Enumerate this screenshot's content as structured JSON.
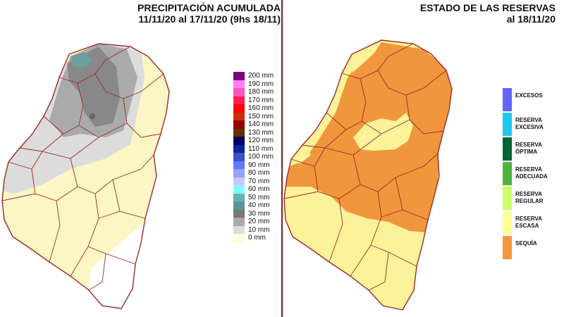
{
  "left_map": {
    "title": "PRECIPITACIÓN ACUMULADA",
    "subtitle": "11/11/20 al 17/11/20 (9hs 18/11)",
    "legend": [
      {
        "label": "200 mm",
        "color": "#800080"
      },
      {
        "label": "190 mm",
        "color": "#ff80ff"
      },
      {
        "label": "180 mm",
        "color": "#ff55bb"
      },
      {
        "label": "170 mm",
        "color": "#ff1a55"
      },
      {
        "label": "160 mm",
        "color": "#ff0000"
      },
      {
        "label": "150 mm",
        "color": "#c83200"
      },
      {
        "label": "140 mm",
        "color": "#960000"
      },
      {
        "label": "130 mm",
        "color": "#643200"
      },
      {
        "label": "120 mm",
        "color": "#000064"
      },
      {
        "label": "110 mm",
        "color": "#0a2896"
      },
      {
        "label": "100 mm",
        "color": "#3c50c8"
      },
      {
        "label": "90 mm",
        "color": "#6478ff"
      },
      {
        "label": "80 mm",
        "color": "#96a0ff"
      },
      {
        "label": "70 mm",
        "color": "#c8c8ff"
      },
      {
        "label": "60 mm",
        "color": "#80ffff"
      },
      {
        "label": "50 mm",
        "color": "#66b2b2"
      },
      {
        "label": "40 mm",
        "color": "#5a9696"
      },
      {
        "label": "30 mm",
        "color": "#787878"
      },
      {
        "label": "20 mm",
        "color": "#aaaaaa"
      },
      {
        "label": "10 mm",
        "color": "#dcdcdc"
      },
      {
        "label": "0 mm",
        "color": "#ffffd2"
      }
    ]
  },
  "right_map": {
    "title": "ESTADO DE LAS RESERVAS",
    "subtitle": "al 18/11/20",
    "legend": [
      {
        "label": "EXCESOS",
        "color": "#6464ff"
      },
      {
        "label": "RESERVA EXCESIVA",
        "color": "#20c8f0"
      },
      {
        "label": "RESERVA ÓPTIMA",
        "color": "#006432"
      },
      {
        "label": "RESERVA ADECUADA",
        "color": "#50b43c"
      },
      {
        "label": "RESERVA REGULAR",
        "color": "#c8ff64"
      },
      {
        "label": "RESERVA ESCASA",
        "color": "#ffff96"
      },
      {
        "label": "SEQUÍA",
        "color": "#f7963c"
      }
    ]
  },
  "colors": {
    "border": "#9b2a2a",
    "divider": "#8b1a1a",
    "base_fill": "#fbf6c4",
    "light_gray": "#dcdcdc",
    "mid_gray": "#aaaaaa",
    "dark_gray": "#888888",
    "teal": "#6aa0a0",
    "drought": "#f0963c",
    "scarce": "#fbf29a"
  }
}
